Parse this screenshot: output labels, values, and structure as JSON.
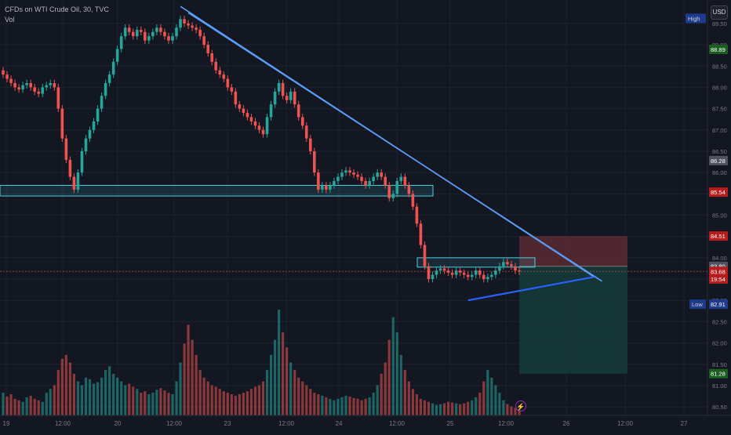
{
  "legend": {
    "symbol_line": "CFDs on WTI Crude Oil, 30, TVC",
    "volume_label": "Vol"
  },
  "currency_button": "USD",
  "colors": {
    "background": "#131722",
    "grid": "#1e222d",
    "up": "#26a69a",
    "down": "#ef5350",
    "trendline": "#5b9cf6",
    "support_zone": "#4dd0e1",
    "rising_line": "#2962ff",
    "stop_zone": "#5b2a33",
    "target_zone": "#163a3a"
  },
  "chart_data": {
    "type": "candlestick",
    "title": "",
    "y_axis": {
      "ticks": [
        80.5,
        81.0,
        81.5,
        82.0,
        82.5,
        83.0,
        83.5,
        84.0,
        84.5,
        85.0,
        85.5,
        86.0,
        86.5,
        87.0,
        87.5,
        88.0,
        88.5,
        89.0,
        89.5
      ],
      "range": [
        80.3,
        90.05
      ]
    },
    "x_axis": {
      "ticks": [
        "19",
        "12:00",
        "20",
        "12:00",
        "23",
        "12:00",
        "24",
        "12:00",
        "25",
        "12:00",
        "26",
        "12:00",
        "27"
      ]
    },
    "price_labels": [
      {
        "text": "High",
        "value": 89.62,
        "color": "#1e3a8a",
        "kind": "tag"
      },
      {
        "text": "88.89",
        "value": 88.89,
        "color": "#1b5e20"
      },
      {
        "text": "86.28",
        "value": 86.28,
        "color": "#50535e"
      },
      {
        "text": "85.54",
        "value": 85.54,
        "color": "#b71c1c"
      },
      {
        "text": "84.51",
        "value": 84.51,
        "color": "#b71c1c"
      },
      {
        "text": "83.80",
        "value": 83.8,
        "color": "#50535e"
      },
      {
        "text": "83.68",
        "value": 83.68,
        "color": "#b71c1c"
      },
      {
        "text": "19:54",
        "value": 83.5,
        "color": "#b71c1c"
      },
      {
        "text": "Low",
        "value": 82.91,
        "color": "#1e3a8a",
        "kind": "tag"
      },
      {
        "text": "82.91",
        "value": 82.91,
        "color": "#1e3a8a"
      },
      {
        "text": "81.28",
        "value": 81.28,
        "color": "#1b5e20"
      }
    ],
    "series_close": [
      88.3,
      88.2,
      88.1,
      88.0,
      87.95,
      88.05,
      88.1,
      88.0,
      87.9,
      87.85,
      88.0,
      88.05,
      88.1,
      88.0,
      87.5,
      86.8,
      86.3,
      85.9,
      85.6,
      86.0,
      86.5,
      86.8,
      87.0,
      87.2,
      87.5,
      87.8,
      88.1,
      88.3,
      88.6,
      88.9,
      89.2,
      89.4,
      89.3,
      89.2,
      89.35,
      89.3,
      89.1,
      89.2,
      89.3,
      89.4,
      89.3,
      89.2,
      89.1,
      89.2,
      89.4,
      89.6,
      89.5,
      89.45,
      89.4,
      89.35,
      89.2,
      89.0,
      88.8,
      88.6,
      88.4,
      88.3,
      88.2,
      88.0,
      87.9,
      87.6,
      87.5,
      87.4,
      87.3,
      87.2,
      87.1,
      87.0,
      86.9,
      87.3,
      87.6,
      87.9,
      88.1,
      87.8,
      87.7,
      87.9,
      87.6,
      87.3,
      87.1,
      86.8,
      86.5,
      86.0,
      85.6,
      85.7,
      85.6,
      85.7,
      85.8,
      85.9,
      86.0,
      86.05,
      86.0,
      85.95,
      85.9,
      85.8,
      85.7,
      85.8,
      85.9,
      86.0,
      85.9,
      85.7,
      85.4,
      85.5,
      85.8,
      85.9,
      85.7,
      85.5,
      85.2,
      84.8,
      84.3,
      83.8,
      83.5,
      83.6,
      83.7,
      83.75,
      83.7,
      83.65,
      83.6,
      83.7,
      83.65,
      83.6,
      83.55,
      83.6,
      83.7,
      83.6,
      83.5,
      83.55,
      83.6,
      83.7,
      83.8,
      83.9,
      83.85,
      83.8,
      83.7,
      83.68
    ],
    "volumes": [
      30,
      25,
      28,
      22,
      20,
      18,
      24,
      26,
      22,
      20,
      18,
      30,
      35,
      40,
      60,
      75,
      80,
      70,
      55,
      45,
      40,
      50,
      48,
      42,
      44,
      50,
      60,
      65,
      55,
      50,
      45,
      40,
      42,
      38,
      35,
      30,
      32,
      28,
      30,
      34,
      36,
      33,
      30,
      28,
      45,
      70,
      95,
      120,
      100,
      80,
      60,
      50,
      45,
      40,
      38,
      35,
      32,
      30,
      28,
      26,
      28,
      30,
      32,
      35,
      38,
      40,
      45,
      60,
      80,
      100,
      140,
      110,
      90,
      70,
      60,
      50,
      45,
      40,
      35,
      30,
      28,
      26,
      24,
      22,
      20,
      22,
      24,
      26,
      25,
      23,
      22,
      20,
      22,
      24,
      30,
      40,
      55,
      70,
      100,
      130,
      110,
      80,
      60,
      45,
      35,
      28,
      22,
      20,
      18,
      16,
      14,
      15,
      16,
      18,
      17,
      16,
      15,
      16,
      18,
      20,
      24,
      30,
      45,
      60,
      50,
      40,
      30,
      20,
      15,
      12,
      10,
      8
    ],
    "support_zone": {
      "top": 85.7,
      "bottom": 85.45
    },
    "consolidation_box": {
      "top": 84.0,
      "bottom": 83.78
    },
    "trendlines": [
      {
        "name": "upper",
        "from": {
          "index": 45,
          "price": 89.9
        },
        "to": {
          "index": 150,
          "price": 83.55
        }
      },
      {
        "name": "lower",
        "from": {
          "index": 47,
          "price": 89.75
        },
        "to": {
          "index": 152,
          "price": 83.45
        }
      }
    ],
    "rising_line": {
      "from": {
        "index": 118,
        "price": 83.0
      },
      "to": {
        "index": 150,
        "price": 83.55
      }
    },
    "trade_zone": {
      "entry": 83.8,
      "stop": 84.51,
      "target": 81.28
    }
  }
}
